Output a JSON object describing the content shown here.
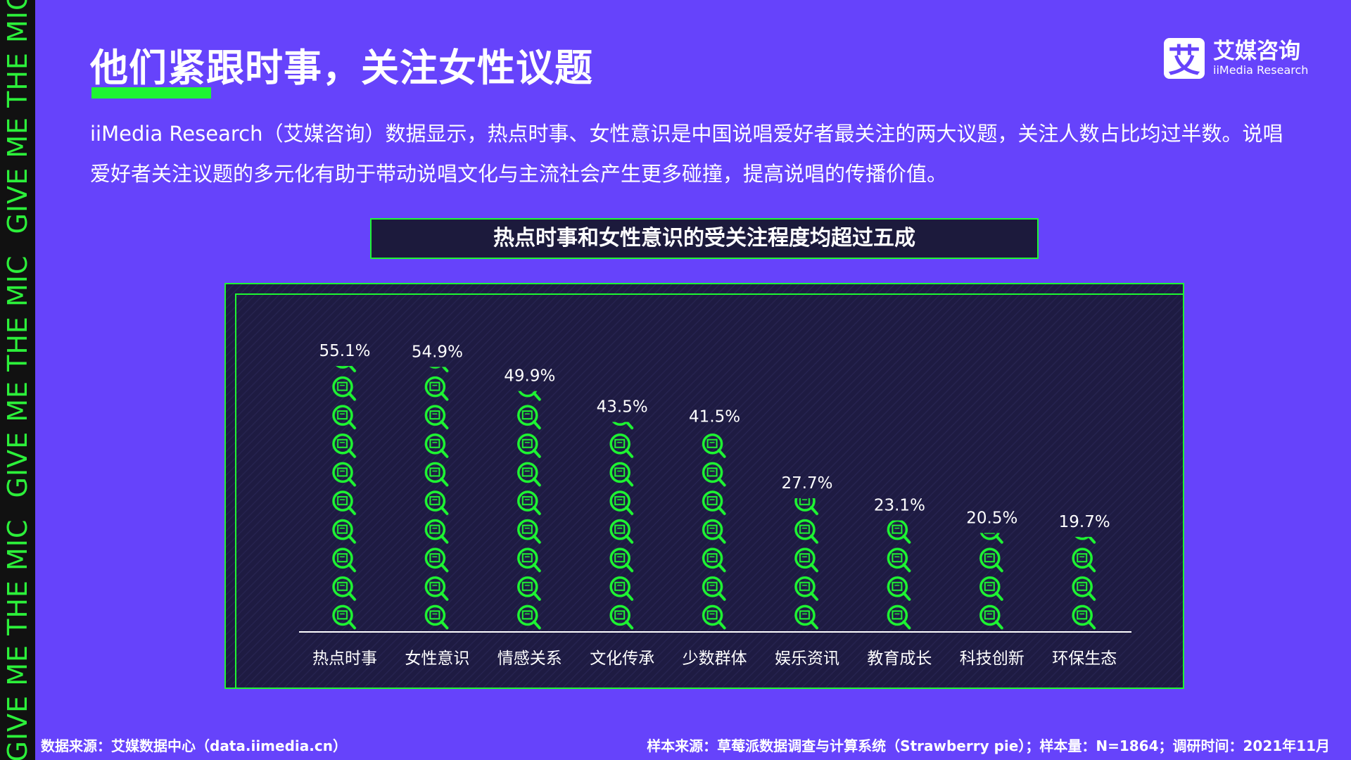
{
  "header": {
    "title": "他们紧跟时事，关注女性议题",
    "side_text": "GIVE ME THE MIC"
  },
  "logo": {
    "icon_text": "艾",
    "name": "艾媒咨询",
    "sub": "iiMedia Research"
  },
  "paragraph": "iiMedia Research（艾媒咨询）数据显示，热点时事、女性意识是中国说唱爱好者最关注的两大议题，关注人数占比均过半数。说唱爱好者关注议题的多元化有助于带动说唱文化与主流社会产生更多碰撞，提高说唱的传播价值。",
  "chart_data": {
    "type": "bar",
    "title": "热点时事和女性意识的受关注程度均超过五成",
    "categories": [
      "热点时事",
      "女性意识",
      "情感关系",
      "文化传承",
      "少数群体",
      "娱乐资讯",
      "教育成长",
      "科技创新",
      "环保生态"
    ],
    "values": [
      55.1,
      54.9,
      49.9,
      43.5,
      41.5,
      27.7,
      23.1,
      20.5,
      19.7
    ],
    "value_labels": [
      "55.1%",
      "54.9%",
      "49.9%",
      "43.5%",
      "41.5%",
      "27.7%",
      "23.1%",
      "20.5%",
      "19.7%"
    ],
    "color": "#1ef532"
  },
  "footer": {
    "source": "数据来源：艾媒数据中心（data.iimedia.cn）",
    "sample": "样本来源：草莓派数据调查与计算系统（Strawberry pie）；样本量：N=1864；调研时间：2021年11月"
  }
}
